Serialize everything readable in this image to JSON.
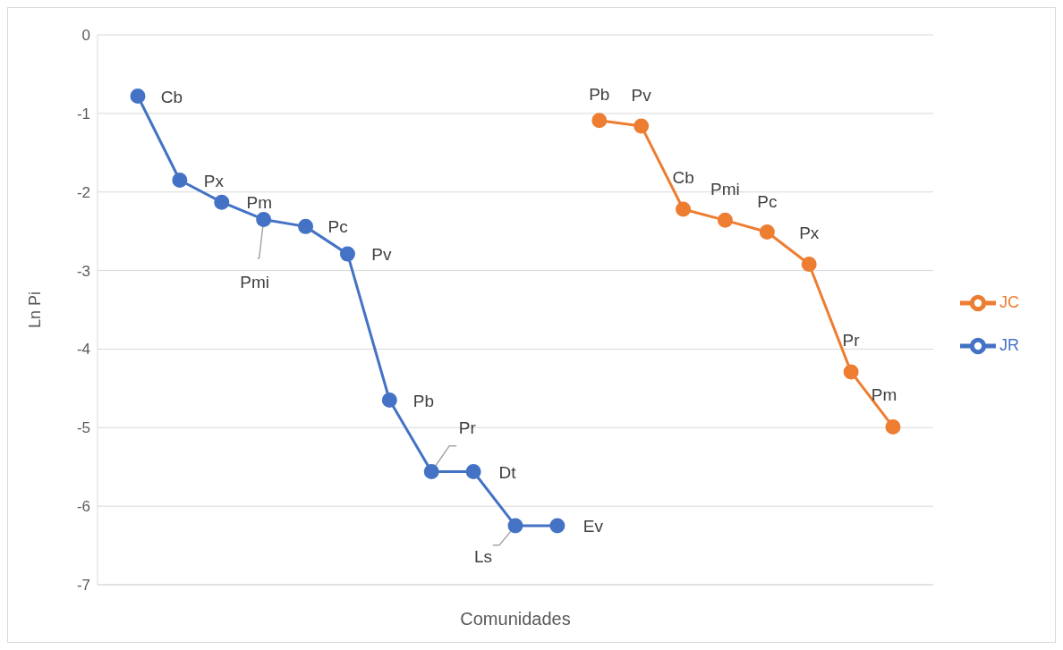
{
  "chart_data": {
    "type": "line",
    "xlabel": "Comunidades",
    "ylabel": "Ln Pi",
    "categories": [
      null,
      null,
      null,
      null,
      null,
      null,
      null,
      null,
      null,
      null,
      null,
      null,
      null,
      null,
      null,
      null,
      null,
      null,
      null
    ],
    "ylim": [
      -7,
      0
    ],
    "yticks": [
      0,
      -1,
      -2,
      -3,
      -4,
      -5,
      -6,
      -7
    ],
    "grid": "y",
    "legend": "right",
    "marker": "circle",
    "line_style": "solid",
    "series": [
      {
        "name": "JR",
        "color": "#4472c4",
        "values": [
          -0.78,
          -1.85,
          -2.13,
          -2.35,
          -2.44,
          -2.79,
          -4.65,
          -5.56,
          -5.56,
          -6.25,
          -6.25,
          null,
          null,
          null,
          null,
          null,
          null,
          null,
          null
        ]
      },
      {
        "name": "JC",
        "color": "#ed7d31",
        "values": [
          null,
          null,
          null,
          null,
          null,
          null,
          null,
          null,
          null,
          null,
          null,
          -1.09,
          -1.16,
          -2.22,
          -2.36,
          -2.51,
          -2.92,
          -4.29,
          -4.99
        ]
      }
    ],
    "annotations": [
      "Cb",
      "Px",
      "Pm",
      "Pmi",
      "Pc",
      "Pv",
      "Pb",
      "Pr",
      "Dt",
      "Ls",
      "Ev",
      "Pb",
      "Pv",
      "Cb",
      "Pmi",
      "Pc",
      "Px",
      "Pr",
      "Pm"
    ]
  }
}
